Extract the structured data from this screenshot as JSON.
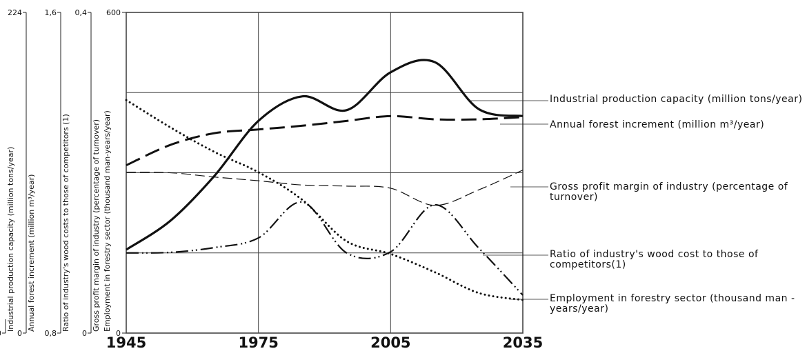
{
  "chart_data": {
    "type": "line",
    "x": [
      1945,
      1955,
      1965,
      1975,
      1985,
      1995,
      2005,
      2015,
      2025,
      2035
    ],
    "xlim": [
      1945,
      2035
    ],
    "xticks": [
      1945,
      1975,
      2005,
      2035
    ],
    "ylim": [
      0,
      600
    ],
    "yticks": [
      0,
      {
        "value": 150,
        "label": null
      },
      {
        "value": 300,
        "label": null
      },
      {
        "value": 450,
        "label": null
      },
      600
    ],
    "ylabel": "Employment in forestry sector (thousand man-years/year)",
    "grid": true,
    "extra_axes": [
      {
        "title": "Industrial production capacity (million tons/year)",
        "ticks": [
          0
        ]
      },
      {
        "title": "Annual forest increment (million m³/year)",
        "ylim": [
          0,
          224
        ],
        "ticks": [
          0,
          224
        ]
      },
      {
        "title": "Ratio of industry's wood costs to those of competitors (1)",
        "ylim": [
          0.8,
          1.6
        ],
        "ticks": [
          {
            "value": 0.8,
            "label": "0,8"
          },
          {
            "value": 1.6,
            "label": "1,6"
          }
        ]
      },
      {
        "title": "Gross profit margin of industry (percentage of turnover)",
        "ylim": [
          0,
          0.4
        ],
        "ticks": [
          0,
          {
            "value": 0.4,
            "label": "0,4"
          }
        ]
      }
    ],
    "series": [
      {
        "name": "Industrial production capacity (million tons/year)",
        "color": "#111111",
        "style": "solid",
        "values": [
          156,
          210,
          294,
          397,
          443,
          417,
          488,
          507,
          419,
          406
        ]
      },
      {
        "name": "Annual forest increment (million m³/year)",
        "color": "#111111",
        "style": "long-dash",
        "values": [
          314,
          352,
          374,
          381,
          388,
          397,
          406,
          400,
          400,
          404
        ]
      },
      {
        "name": "Gross profit margin of industry (percentage of turnover)",
        "color": "#111111",
        "style": "dash",
        "values": [
          301,
          300,
          292,
          285,
          277,
          275,
          271,
          239,
          268,
          305
        ]
      },
      {
        "name": "Ratio of industry's wood cost to those of competitors(1)",
        "color": "#111111",
        "style": "dash-dot-dot",
        "values": [
          150,
          151,
          160,
          178,
          245,
          150,
          152,
          240,
          159,
          71
        ]
      },
      {
        "name": "Employment in forestry sector (thousand man - years/year)",
        "color": "#111111",
        "style": "dotted",
        "values": [
          436,
          385,
          339,
          301,
          249,
          172,
          148,
          114,
          75,
          62
        ]
      }
    ]
  }
}
